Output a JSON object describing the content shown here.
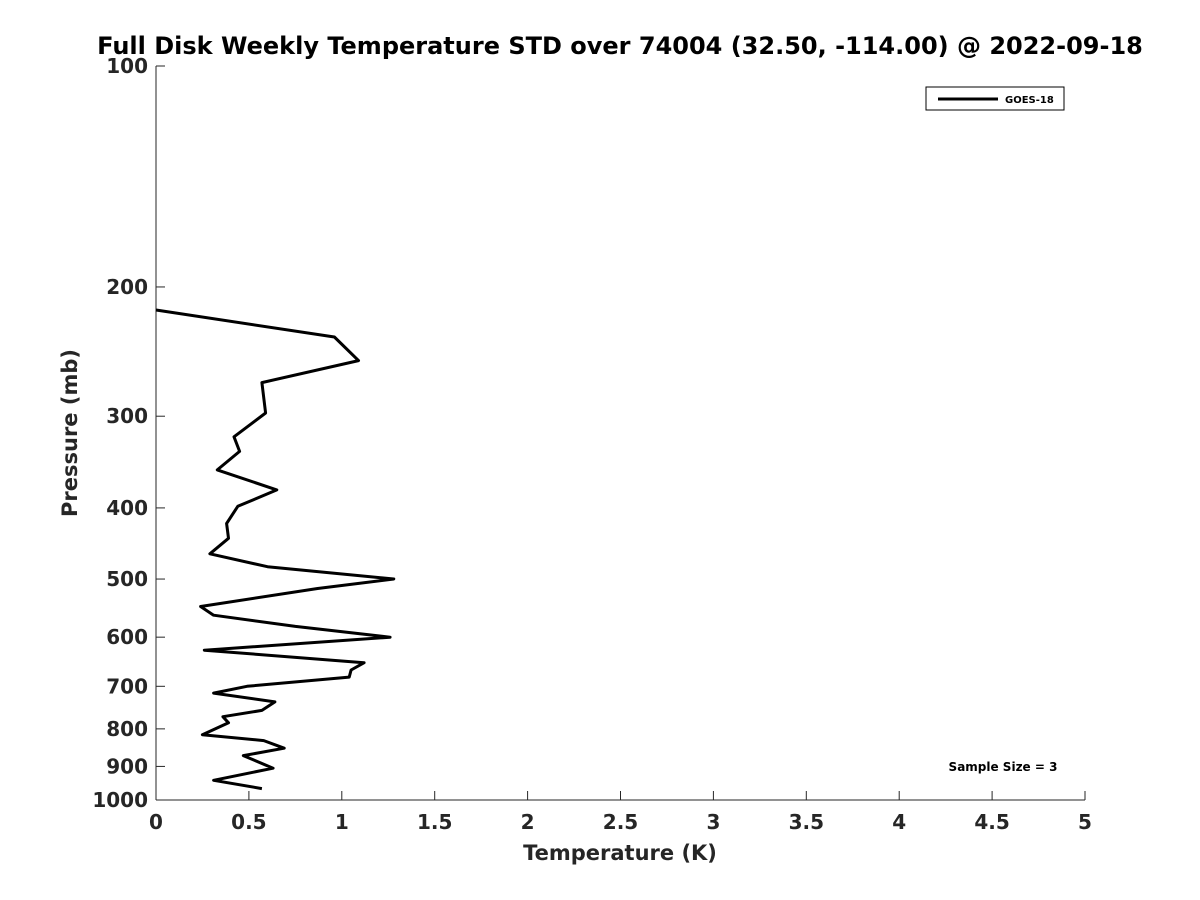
{
  "chart_data": {
    "type": "line",
    "title": "Full Disk Weekly Temperature STD over 74004 (32.50, -114.00) @ 2022-09-18",
    "xlabel": "Temperature (K)",
    "ylabel": "Pressure (mb)",
    "xlim": [
      0,
      5
    ],
    "ylim": [
      100,
      1000
    ],
    "y_scale": "log",
    "y_reversed": true,
    "xticks": [
      "0",
      "0.5",
      "1",
      "1.5",
      "2",
      "2.5",
      "3",
      "3.5",
      "4",
      "4.5",
      "5"
    ],
    "xtick_values": [
      0,
      0.5,
      1,
      1.5,
      2,
      2.5,
      3,
      3.5,
      4,
      4.5,
      5
    ],
    "yticks": [
      "100",
      "200",
      "300",
      "400",
      "500",
      "600",
      "700",
      "800",
      "900",
      "1000"
    ],
    "ytick_values": [
      100,
      200,
      300,
      400,
      500,
      600,
      700,
      800,
      900,
      1000
    ],
    "grid": false,
    "legend_position": "top-right",
    "annotation": "Sample Size = 3",
    "series": [
      {
        "name": "GOES-18",
        "color": "#000000",
        "x": [
          0.0,
          0.96,
          1.09,
          0.57,
          0.59,
          0.42,
          0.45,
          0.33,
          0.65,
          0.44,
          0.38,
          0.39,
          0.29,
          0.6,
          1.28,
          0.87,
          0.24,
          0.31,
          0.75,
          1.26,
          0.26,
          1.12,
          1.05,
          1.04,
          0.49,
          0.31,
          0.64,
          0.57,
          0.36,
          0.39,
          0.25,
          0.58,
          0.69,
          0.47,
          0.63,
          0.31,
          0.57
        ],
        "y": [
          215,
          234,
          252,
          270,
          297,
          320,
          335,
          355,
          378,
          398,
          420,
          440,
          462,
          481,
          500,
          515,
          545,
          560,
          580,
          600,
          625,
          650,
          665,
          680,
          700,
          715,
          735,
          755,
          770,
          785,
          815,
          830,
          850,
          870,
          905,
          940,
          965
        ]
      }
    ]
  }
}
